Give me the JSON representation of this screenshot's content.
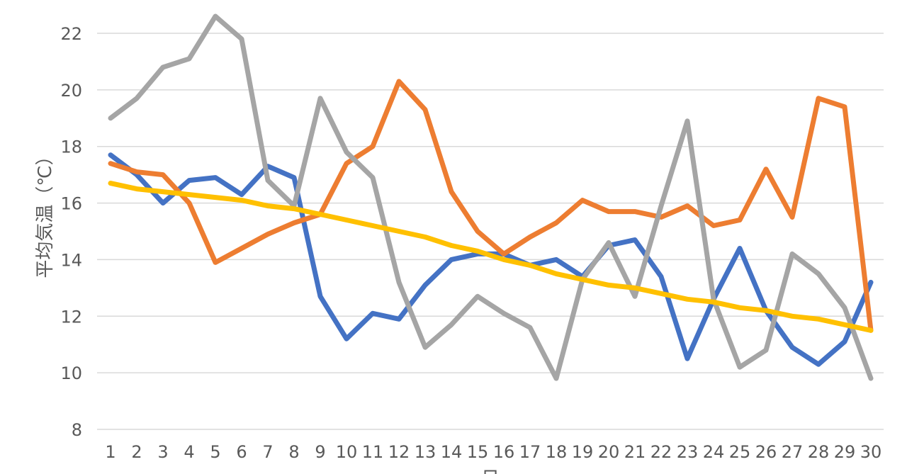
{
  "chart_data": {
    "type": "line",
    "title": "",
    "xlabel": "日",
    "ylabel": "平均気温（℃）",
    "ylim": [
      8,
      22
    ],
    "yticks": [
      8,
      10,
      12,
      14,
      16,
      18,
      20,
      22
    ],
    "grid": true,
    "legend": "none",
    "x": [
      1,
      2,
      3,
      4,
      5,
      6,
      7,
      8,
      9,
      10,
      11,
      12,
      13,
      14,
      15,
      16,
      17,
      18,
      19,
      20,
      21,
      22,
      23,
      24,
      25,
      26,
      27,
      28,
      29,
      30
    ],
    "x_labels": [
      "1",
      "2",
      "3",
      "4",
      "5",
      "6",
      "7",
      "8",
      "9",
      "10",
      "11",
      "12",
      "13",
      "14",
      "15",
      "16",
      "17",
      "18",
      "19",
      "20",
      "21",
      "22",
      "23",
      "24",
      "25",
      "26",
      "27",
      "28",
      "29",
      "30"
    ],
    "series": [
      {
        "color": "#4472C4",
        "values": [
          17.7,
          17.0,
          16.0,
          16.8,
          16.9,
          16.3,
          17.3,
          16.9,
          12.7,
          11.2,
          12.1,
          11.9,
          13.1,
          14.0,
          14.2,
          14.2,
          13.8,
          14.0,
          13.4,
          14.5,
          14.7,
          13.4,
          10.5,
          12.6,
          14.4,
          12.2,
          10.9,
          10.3,
          11.1,
          13.2
        ]
      },
      {
        "color": "#ED7D31",
        "values": [
          17.4,
          17.1,
          17.0,
          16.0,
          13.9,
          14.4,
          14.9,
          15.3,
          15.6,
          17.4,
          18.0,
          20.3,
          19.3,
          16.4,
          15.0,
          14.2,
          14.8,
          15.3,
          16.1,
          15.7,
          15.7,
          15.5,
          15.9,
          15.2,
          15.4,
          17.2,
          15.5,
          19.7,
          19.4,
          11.5
        ]
      },
      {
        "color": "#A5A5A5",
        "values": [
          19.0,
          19.7,
          20.8,
          21.1,
          22.6,
          21.8,
          16.8,
          15.9,
          19.7,
          17.8,
          16.9,
          13.2,
          10.9,
          11.7,
          12.7,
          12.1,
          11.6,
          9.8,
          13.3,
          14.6,
          12.7,
          15.9,
          18.9,
          12.6,
          10.2,
          10.8,
          14.2,
          13.5,
          12.3,
          9.8
        ]
      },
      {
        "color": "#FFC000",
        "values": [
          16.7,
          16.5,
          16.4,
          16.3,
          16.2,
          16.1,
          15.9,
          15.8,
          15.6,
          15.4,
          15.2,
          15.0,
          14.8,
          14.5,
          14.3,
          14.0,
          13.8,
          13.5,
          13.3,
          13.1,
          13.0,
          12.8,
          12.6,
          12.5,
          12.3,
          12.2,
          12.0,
          11.9,
          11.7,
          11.5
        ]
      }
    ]
  }
}
